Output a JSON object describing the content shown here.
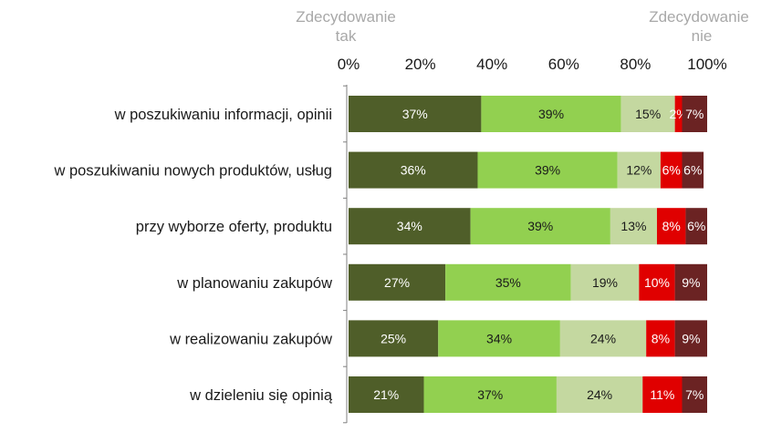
{
  "chart_data": {
    "type": "bar",
    "orientation": "horizontal",
    "stacked": true,
    "end_labels": {
      "left": [
        "Zdecydowanie",
        "tak"
      ],
      "right": [
        "Zdecydowanie",
        "nie"
      ]
    },
    "xlim": [
      0,
      100
    ],
    "x_ticks": [
      "0%",
      "20%",
      "40%",
      "60%",
      "80%",
      "100%"
    ],
    "grid": false,
    "legend": "none",
    "categories": [
      "w poszukiwaniu informacji, opinii",
      "w poszukiwaniu nowych produktów, usług",
      "przy wyborze oferty, produktu",
      "w planowaniu zakupów",
      "w realizowaniu zakupów",
      "w dzieleniu się opinią"
    ],
    "series": [
      {
        "color": "#4f5e29",
        "text_color": "#ffffff",
        "values": [
          37,
          36,
          34,
          27,
          25,
          21
        ],
        "labels": [
          "37%",
          "36%",
          "34%",
          "27%",
          "25%",
          "21%"
        ]
      },
      {
        "color": "#92d050",
        "text_color": "#1a1a1a",
        "values": [
          39,
          39,
          39,
          35,
          34,
          37
        ],
        "labels": [
          "39%",
          "39%",
          "39%",
          "35%",
          "34%",
          "37%"
        ]
      },
      {
        "color": "#c4d8a0",
        "text_color": "#1a1a1a",
        "values": [
          15,
          12,
          13,
          19,
          24,
          24
        ],
        "labels": [
          "15%",
          "12%",
          "13%",
          "19%",
          "24%",
          "24%"
        ]
      },
      {
        "color": "#e00000",
        "text_color": "#ffffff",
        "values": [
          2,
          6,
          8,
          10,
          8,
          11
        ],
        "labels": [
          "2%",
          "6%",
          "8%",
          "10%",
          "8%",
          "11%"
        ]
      },
      {
        "color": "#6b2323",
        "text_color": "#ffffff",
        "values": [
          7,
          6,
          6,
          9,
          9,
          7
        ],
        "labels": [
          "7%",
          "6%",
          "6%",
          "9%",
          "9%",
          "7%"
        ]
      }
    ]
  }
}
